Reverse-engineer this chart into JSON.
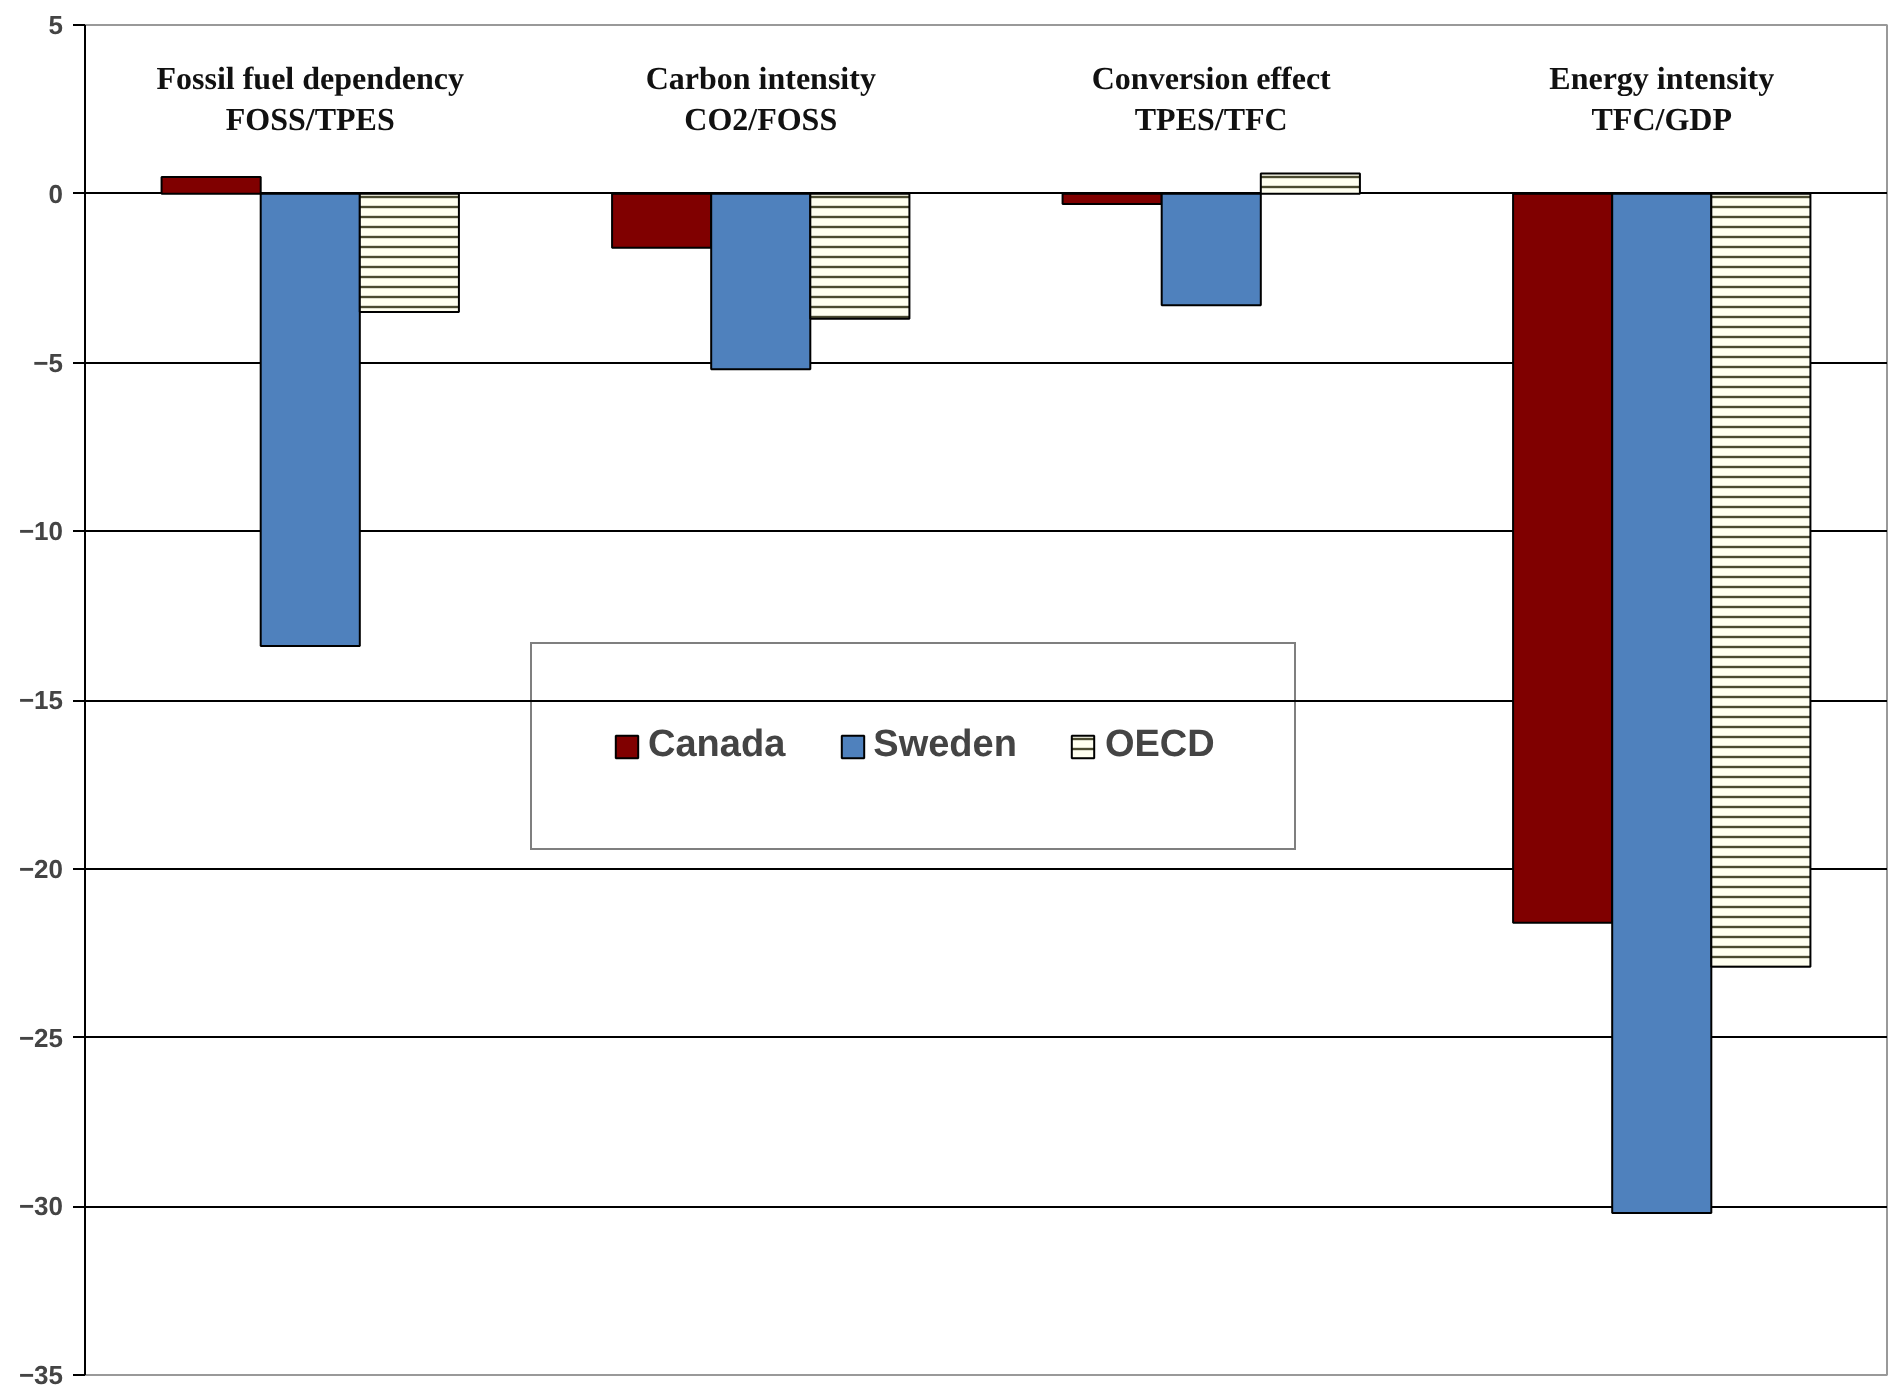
{
  "chart_data": {
    "type": "bar",
    "categories": [
      "Fossil fuel dependency\nFOSS/TPES",
      "Carbon intensity\nCO2/FOSS",
      "Conversion effect\nTPES/TFC",
      "Energy intensity\nTFC/GDP"
    ],
    "series": [
      {
        "name": "Canada",
        "color": "#800000",
        "values": [
          0.5,
          -1.6,
          -0.3,
          -21.6
        ]
      },
      {
        "name": "Sweden",
        "color": "#4f81bd",
        "values": [
          -13.4,
          -5.2,
          -3.3,
          -30.2
        ]
      },
      {
        "name": "OECD",
        "color": "#fffff0",
        "values": [
          -3.5,
          -3.7,
          0.6,
          -22.9
        ]
      }
    ],
    "ylim": [
      -35,
      5
    ],
    "yticks": [
      5,
      0,
      -5,
      -10,
      -15,
      -20,
      -25,
      -30,
      -35
    ],
    "grid": "y",
    "legend": "center",
    "tick_labels": "y"
  }
}
